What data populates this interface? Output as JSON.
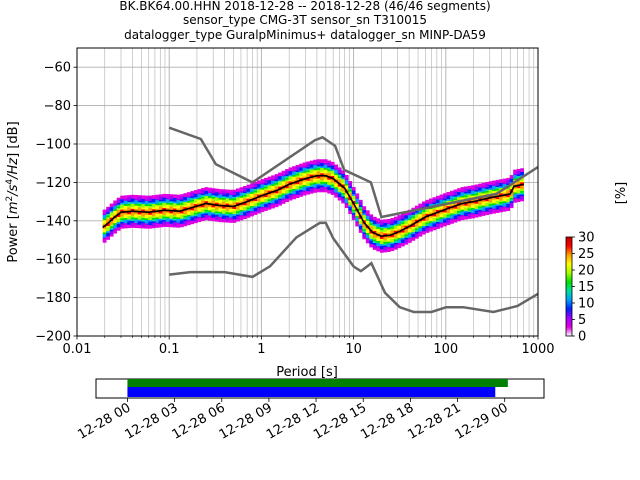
{
  "chart_data": {
    "type": "heatmap",
    "title_lines": [
      "BK.BK64.00.HHN   2018-12-28 -- 2018-12-28  (46/46 segments)",
      "sensor_type CMG-3T sensor_sn T310015",
      "datalogger_type GuralpMinimus+ datalogger_sn MINP-DA59"
    ],
    "xlabel": "Period [s]",
    "ylabel": "Power [m²/s⁴/Hz] [dB]",
    "ylabel_parts": {
      "prefix": "Power [",
      "m": "m",
      "sup2": "2",
      "s": "/s",
      "sup4": "4",
      "hz": "/Hz",
      "suffix": "] [dB]"
    },
    "x_scale": "log",
    "xlim": [
      0.01,
      1000
    ],
    "ylim": [
      -200,
      -50
    ],
    "x_ticks": [
      {
        "value": 0.01,
        "label": "0.01"
      },
      {
        "value": 0.1,
        "label": "0.1"
      },
      {
        "value": 1,
        "label": "1"
      },
      {
        "value": 10,
        "label": "10"
      },
      {
        "value": 100,
        "label": "100"
      },
      {
        "value": 1000,
        "label": "1000"
      }
    ],
    "y_ticks": [
      {
        "value": -60,
        "label": "−60"
      },
      {
        "value": -80,
        "label": "−80"
      },
      {
        "value": -100,
        "label": "−100"
      },
      {
        "value": -120,
        "label": "−120"
      },
      {
        "value": -140,
        "label": "−140"
      },
      {
        "value": -160,
        "label": "−160"
      },
      {
        "value": -180,
        "label": "−180"
      },
      {
        "value": -200,
        "label": "−200"
      }
    ],
    "grid": true,
    "noise_models": {
      "color": "#666666",
      "high": [
        [
          0.1,
          -91.5
        ],
        [
          0.22,
          -97.4
        ],
        [
          0.32,
          -110.5
        ],
        [
          0.8,
          -120
        ],
        [
          3.8,
          -98
        ],
        [
          4.6,
          -96.5
        ],
        [
          6.3,
          -101
        ],
        [
          7.9,
          -113.5
        ],
        [
          15.4,
          -120
        ],
        [
          20,
          -138
        ],
        [
          354.8,
          -126
        ],
        [
          1000,
          -112
        ]
      ],
      "low": [
        [
          0.1,
          -168
        ],
        [
          0.17,
          -166.7
        ],
        [
          0.4,
          -166.7
        ],
        [
          0.8,
          -169.2
        ],
        [
          1.24,
          -163.7
        ],
        [
          2.4,
          -148.6
        ],
        [
          4.3,
          -141.1
        ],
        [
          5,
          -141.1
        ],
        [
          6,
          -149
        ],
        [
          10,
          -163.8
        ],
        [
          12,
          -166.2
        ],
        [
          15.6,
          -162.1
        ],
        [
          21.9,
          -177.5
        ],
        [
          31.6,
          -185
        ],
        [
          45,
          -187.5
        ],
        [
          70,
          -187.5
        ],
        [
          101,
          -185
        ],
        [
          154,
          -185
        ],
        [
          328,
          -187.5
        ],
        [
          600,
          -184.4
        ],
        [
          1000,
          -178
        ]
      ]
    },
    "mean_curve": {
      "color": "#000000",
      "points": [
        [
          0.019,
          -143.5
        ],
        [
          0.022,
          -141
        ],
        [
          0.025,
          -138.5
        ],
        [
          0.03,
          -135.5
        ],
        [
          0.04,
          -135
        ],
        [
          0.06,
          -135.5
        ],
        [
          0.09,
          -134.5
        ],
        [
          0.13,
          -135
        ],
        [
          0.18,
          -133
        ],
        [
          0.25,
          -131
        ],
        [
          0.35,
          -132
        ],
        [
          0.5,
          -132.5
        ],
        [
          0.7,
          -130
        ],
        [
          1,
          -127
        ],
        [
          1.5,
          -124
        ],
        [
          2,
          -121
        ],
        [
          3,
          -118
        ],
        [
          4,
          -116.5
        ],
        [
          5,
          -116.5
        ],
        [
          6,
          -118
        ],
        [
          8,
          -123
        ],
        [
          10,
          -131
        ],
        [
          13,
          -141
        ],
        [
          16,
          -146
        ],
        [
          20,
          -148
        ],
        [
          25,
          -147.5
        ],
        [
          30,
          -146
        ],
        [
          40,
          -143
        ],
        [
          60,
          -138
        ],
        [
          100,
          -134
        ],
        [
          150,
          -131
        ],
        [
          200,
          -130
        ],
        [
          300,
          -128
        ],
        [
          500,
          -126
        ],
        [
          550,
          -122
        ],
        [
          700,
          -121
        ]
      ]
    },
    "colorbar": {
      "label": "[%]",
      "range": [
        0,
        30
      ],
      "ticks": [
        {
          "value": 0,
          "label": "0"
        },
        {
          "value": 5,
          "label": "5"
        },
        {
          "value": 10,
          "label": "10"
        },
        {
          "value": 15,
          "label": "15"
        },
        {
          "value": 20,
          "label": "20"
        },
        {
          "value": 25,
          "label": "25"
        },
        {
          "value": 30,
          "label": "30"
        }
      ],
      "colors": [
        "#ffffff",
        "#e000e0",
        "#a000ff",
        "#0020ff",
        "#00a0ff",
        "#00e0a0",
        "#00e000",
        "#a0ff00",
        "#ffff00",
        "#ffa000",
        "#ff0000",
        "#c00000"
      ]
    },
    "coverage": {
      "start_hour": -2,
      "end_hour": 26.5,
      "data_bar": {
        "color": "#0000ff",
        "start_hour": 0,
        "end_hour": 23.4
      },
      "gap_bar": {
        "color": "#008000",
        "start_hour": 0,
        "end_hour": 24.2
      },
      "ticks": [
        {
          "hour": 0,
          "label": "12-28 00"
        },
        {
          "hour": 3,
          "label": "12-28 03"
        },
        {
          "hour": 6,
          "label": "12-28 06"
        },
        {
          "hour": 9,
          "label": "12-28 09"
        },
        {
          "hour": 12,
          "label": "12-28 12"
        },
        {
          "hour": 15,
          "label": "12-28 15"
        },
        {
          "hour": 18,
          "label": "12-28 18"
        },
        {
          "hour": 21,
          "label": "12-28 21"
        },
        {
          "hour": 24,
          "label": "12-29 00"
        }
      ]
    }
  }
}
